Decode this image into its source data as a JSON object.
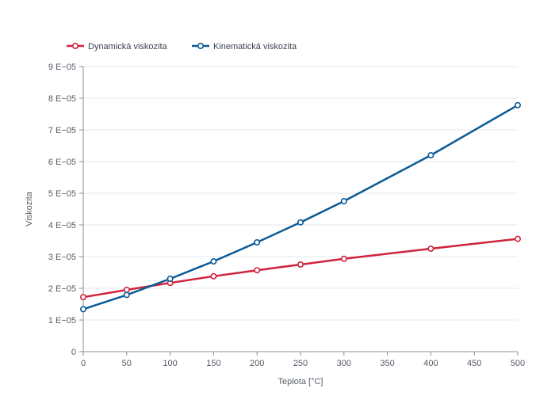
{
  "chart_data": {
    "type": "line",
    "title": "",
    "xlabel": "Teplota [°C]",
    "ylabel": "Viskozita",
    "xlim": [
      0,
      500
    ],
    "ylim": [
      0,
      9e-05
    ],
    "x_ticks": [
      0,
      50,
      100,
      150,
      200,
      250,
      300,
      350,
      400,
      450,
      500
    ],
    "x_tick_labels": [
      "0",
      "50",
      "100",
      "150",
      "200",
      "250",
      "300",
      "350",
      "400",
      "450",
      "500"
    ],
    "y_ticks": [
      0,
      1e-05,
      2e-05,
      3e-05,
      4e-05,
      5e-05,
      6e-05,
      7e-05,
      8e-05,
      9e-05
    ],
    "y_tick_labels": [
      "0",
      "1 E−05",
      "2 E−05",
      "3 E−05",
      "4 E−05",
      "5 E−05",
      "6 E−05",
      "7 E−05",
      "8 E−05",
      "9 E−05"
    ],
    "grid": "horizontal",
    "legend_position": "top-left",
    "series": [
      {
        "name": "Dynamická viskozita",
        "color": "#d0223c",
        "x": [
          0,
          50,
          100,
          150,
          200,
          250,
          300,
          400,
          500
        ],
        "y": [
          1.72e-05,
          1.95e-05,
          2.17e-05,
          2.38e-05,
          2.57e-05,
          2.75e-05,
          2.93e-05,
          3.25e-05,
          3.56e-05
        ]
      },
      {
        "name": "Kinematická viskozita",
        "color": "#0b5a96",
        "x": [
          0,
          50,
          100,
          150,
          200,
          250,
          300,
          400,
          500
        ],
        "y": [
          1.34e-05,
          1.79e-05,
          2.3e-05,
          2.85e-05,
          3.45e-05,
          4.08e-05,
          4.75e-05,
          6.2e-05,
          7.78e-05
        ]
      }
    ]
  }
}
